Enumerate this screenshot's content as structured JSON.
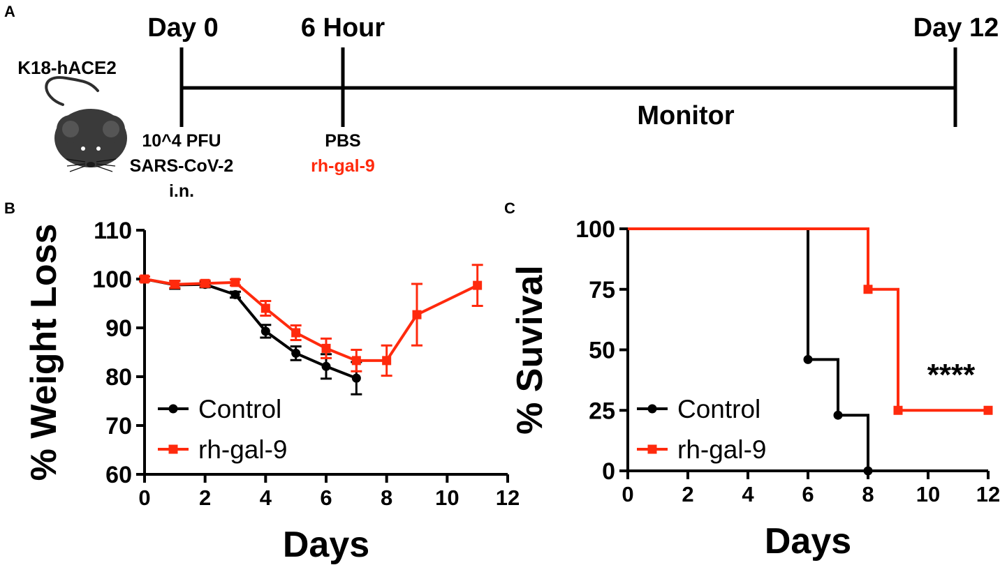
{
  "colors": {
    "control": "#000000",
    "treatment": "#ff2a0d",
    "mouse_body": "#3a3a3a",
    "mouse_ear_inner": "#555555"
  },
  "panels": {
    "a": "A",
    "b": "B",
    "c": "C"
  },
  "timeline": {
    "mouse_label": "K18-hACE2",
    "day0": "Day 0",
    "hour6": "6 Hour",
    "day12": "Day 12",
    "monitor": "Monitor",
    "infection_dose": "10^4 PFU",
    "infection_virus": "SARS-CoV-2",
    "infection_route": "i.n.",
    "treat_control": "PBS",
    "treat_drug": "rh-gal-9"
  },
  "chart_data": [
    {
      "id": "weight",
      "type": "line",
      "title": "",
      "xlabel": "Days",
      "ylabel": "% Weight Loss",
      "xlim": [
        0,
        12
      ],
      "ylim": [
        60,
        110
      ],
      "xticks": [
        0,
        2,
        4,
        6,
        8,
        10,
        12
      ],
      "yticks": [
        60,
        70,
        80,
        90,
        100,
        110
      ],
      "legend": "bottom-left",
      "series": [
        {
          "name": "Control",
          "marker": "circle",
          "x": [
            0,
            1,
            2,
            3,
            4,
            5,
            6,
            7
          ],
          "y": [
            100,
            98.8,
            98.9,
            96.8,
            89.3,
            84.8,
            82.1,
            79.7
          ],
          "err": [
            0.5,
            0.8,
            0.6,
            0.6,
            1.3,
            1.4,
            2.5,
            3.3
          ]
        },
        {
          "name": "rh-gal-9",
          "marker": "square",
          "x": [
            0,
            1,
            2,
            3,
            4,
            5,
            6,
            7,
            8,
            9,
            11
          ],
          "y": [
            100,
            98.9,
            99.1,
            99.3,
            94.0,
            89.0,
            85.8,
            83.3,
            83.3,
            92.7,
            98.7
          ],
          "err": [
            0.5,
            0.7,
            0.6,
            0.6,
            1.5,
            1.5,
            2.0,
            2.2,
            3.1,
            6.3,
            4.2
          ]
        }
      ]
    },
    {
      "id": "survival",
      "type": "line",
      "title": "",
      "xlabel": "Days",
      "ylabel": "% Suvival",
      "xlim": [
        0,
        12
      ],
      "ylim": [
        0,
        100
      ],
      "xticks": [
        0,
        2,
        4,
        6,
        8,
        10,
        12
      ],
      "yticks": [
        0,
        25,
        50,
        75,
        100
      ],
      "legend": "bottom-left",
      "annotation": "****",
      "series": [
        {
          "name": "Control",
          "marker": "circle",
          "step_x": [
            0,
            6,
            6,
            7,
            7,
            8,
            8
          ],
          "step_y": [
            100,
            100,
            46,
            46,
            23,
            23,
            0
          ],
          "points_x": [
            6,
            7,
            8
          ],
          "points_y": [
            46,
            23,
            0
          ]
        },
        {
          "name": "rh-gal-9",
          "marker": "square",
          "step_x": [
            0,
            8,
            8,
            9,
            9,
            12
          ],
          "step_y": [
            100,
            100,
            75,
            75,
            25,
            25
          ],
          "points_x": [
            8,
            9,
            12
          ],
          "points_y": [
            75,
            25,
            25
          ]
        }
      ]
    }
  ]
}
